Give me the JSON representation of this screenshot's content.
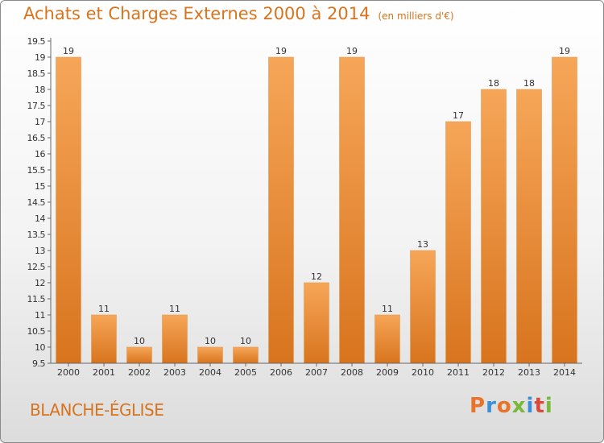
{
  "header": {
    "title": "Achats et Charges Externes 2000 à 2014",
    "subtitle": "(en milliers d'€)"
  },
  "footer": {
    "commune": "BLANCHE-ÉGLISE",
    "logo_text": "Proxiti",
    "logo_colors": [
      "#e8742a",
      "#3a8fd8",
      "#e8742a",
      "#7ab83a",
      "#3a8fd8",
      "#d84a3a",
      "#7ab83a"
    ]
  },
  "colors": {
    "bar_light": "#f6a658",
    "bar_dark": "#d8741e",
    "axis": "#666666",
    "grid": "#cfcfcf",
    "text": "#333333"
  },
  "chart_data": {
    "type": "bar",
    "title": "Achats et Charges Externes 2000 à 2014",
    "subtitle": "(en milliers d'€)",
    "categories": [
      "2000",
      "2001",
      "2002",
      "2003",
      "2004",
      "2005",
      "2006",
      "2007",
      "2008",
      "2009",
      "2010",
      "2011",
      "2012",
      "2013",
      "2014"
    ],
    "values": [
      19,
      11,
      10,
      11,
      10,
      10,
      19,
      12,
      19,
      11,
      13,
      17,
      18,
      18,
      19
    ],
    "data_labels": [
      "19",
      "11",
      "10",
      "11",
      "10",
      "10",
      "19",
      "12",
      "19",
      "11",
      "13",
      "17",
      "18",
      "18",
      "19"
    ],
    "yticks": [
      "9.5",
      "10",
      "10.5",
      "11",
      "11.5",
      "12",
      "12.5",
      "13",
      "13.5",
      "14",
      "14.5",
      "15",
      "15.5",
      "16",
      "16.5",
      "17",
      "17.5",
      "18",
      "18.5",
      "19",
      "19.5"
    ],
    "ylim": [
      9.5,
      19.5
    ],
    "ytick_step": 0.5,
    "grid": false,
    "legend": "none"
  }
}
